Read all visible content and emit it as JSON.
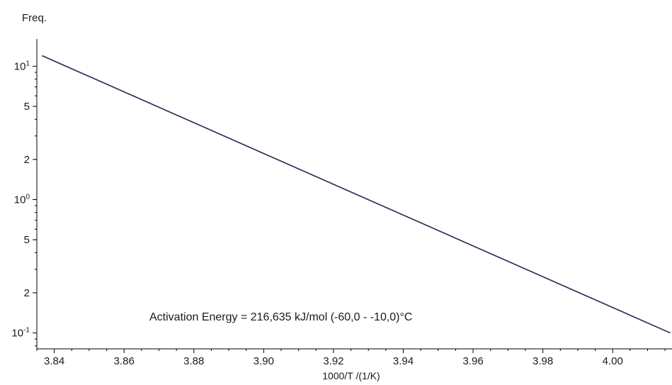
{
  "chart_data": {
    "type": "line",
    "ylabel": "Freq.",
    "xlabel": "1000/T /(1/K)",
    "annotation": "Activation Energy = 216,635 kJ/mol  (-60,0 - -10,0)°C",
    "x_scale": "linear",
    "y_scale": "log",
    "xlim": [
      3.835,
      4.017
    ],
    "ylim": [
      0.076,
      16
    ],
    "grid": false,
    "x_ticks": [
      {
        "value": 3.84,
        "label": "3.84"
      },
      {
        "value": 3.86,
        "label": "3.86"
      },
      {
        "value": 3.88,
        "label": "3.88"
      },
      {
        "value": 3.9,
        "label": "3.90"
      },
      {
        "value": 3.92,
        "label": "3.92"
      },
      {
        "value": 3.94,
        "label": "3.94"
      },
      {
        "value": 3.96,
        "label": "3.96"
      },
      {
        "value": 3.98,
        "label": "3.98"
      },
      {
        "value": 4.0,
        "label": "4.00"
      }
    ],
    "y_ticks": [
      {
        "value": 10,
        "base": "10",
        "exp": "1"
      },
      {
        "value": 5,
        "base": "5",
        "exp": ""
      },
      {
        "value": 2,
        "base": "2",
        "exp": ""
      },
      {
        "value": 1,
        "base": "10",
        "exp": "0"
      },
      {
        "value": 0.5,
        "base": "5",
        "exp": ""
      },
      {
        "value": 0.2,
        "base": "2",
        "exp": ""
      },
      {
        "value": 0.1,
        "base": "10",
        "exp": "-1"
      }
    ],
    "series": [
      {
        "color": "#1f2a4e",
        "x": [
          3.8365,
          4.0165
        ],
        "y": [
          12.0,
          0.1
        ]
      }
    ]
  }
}
